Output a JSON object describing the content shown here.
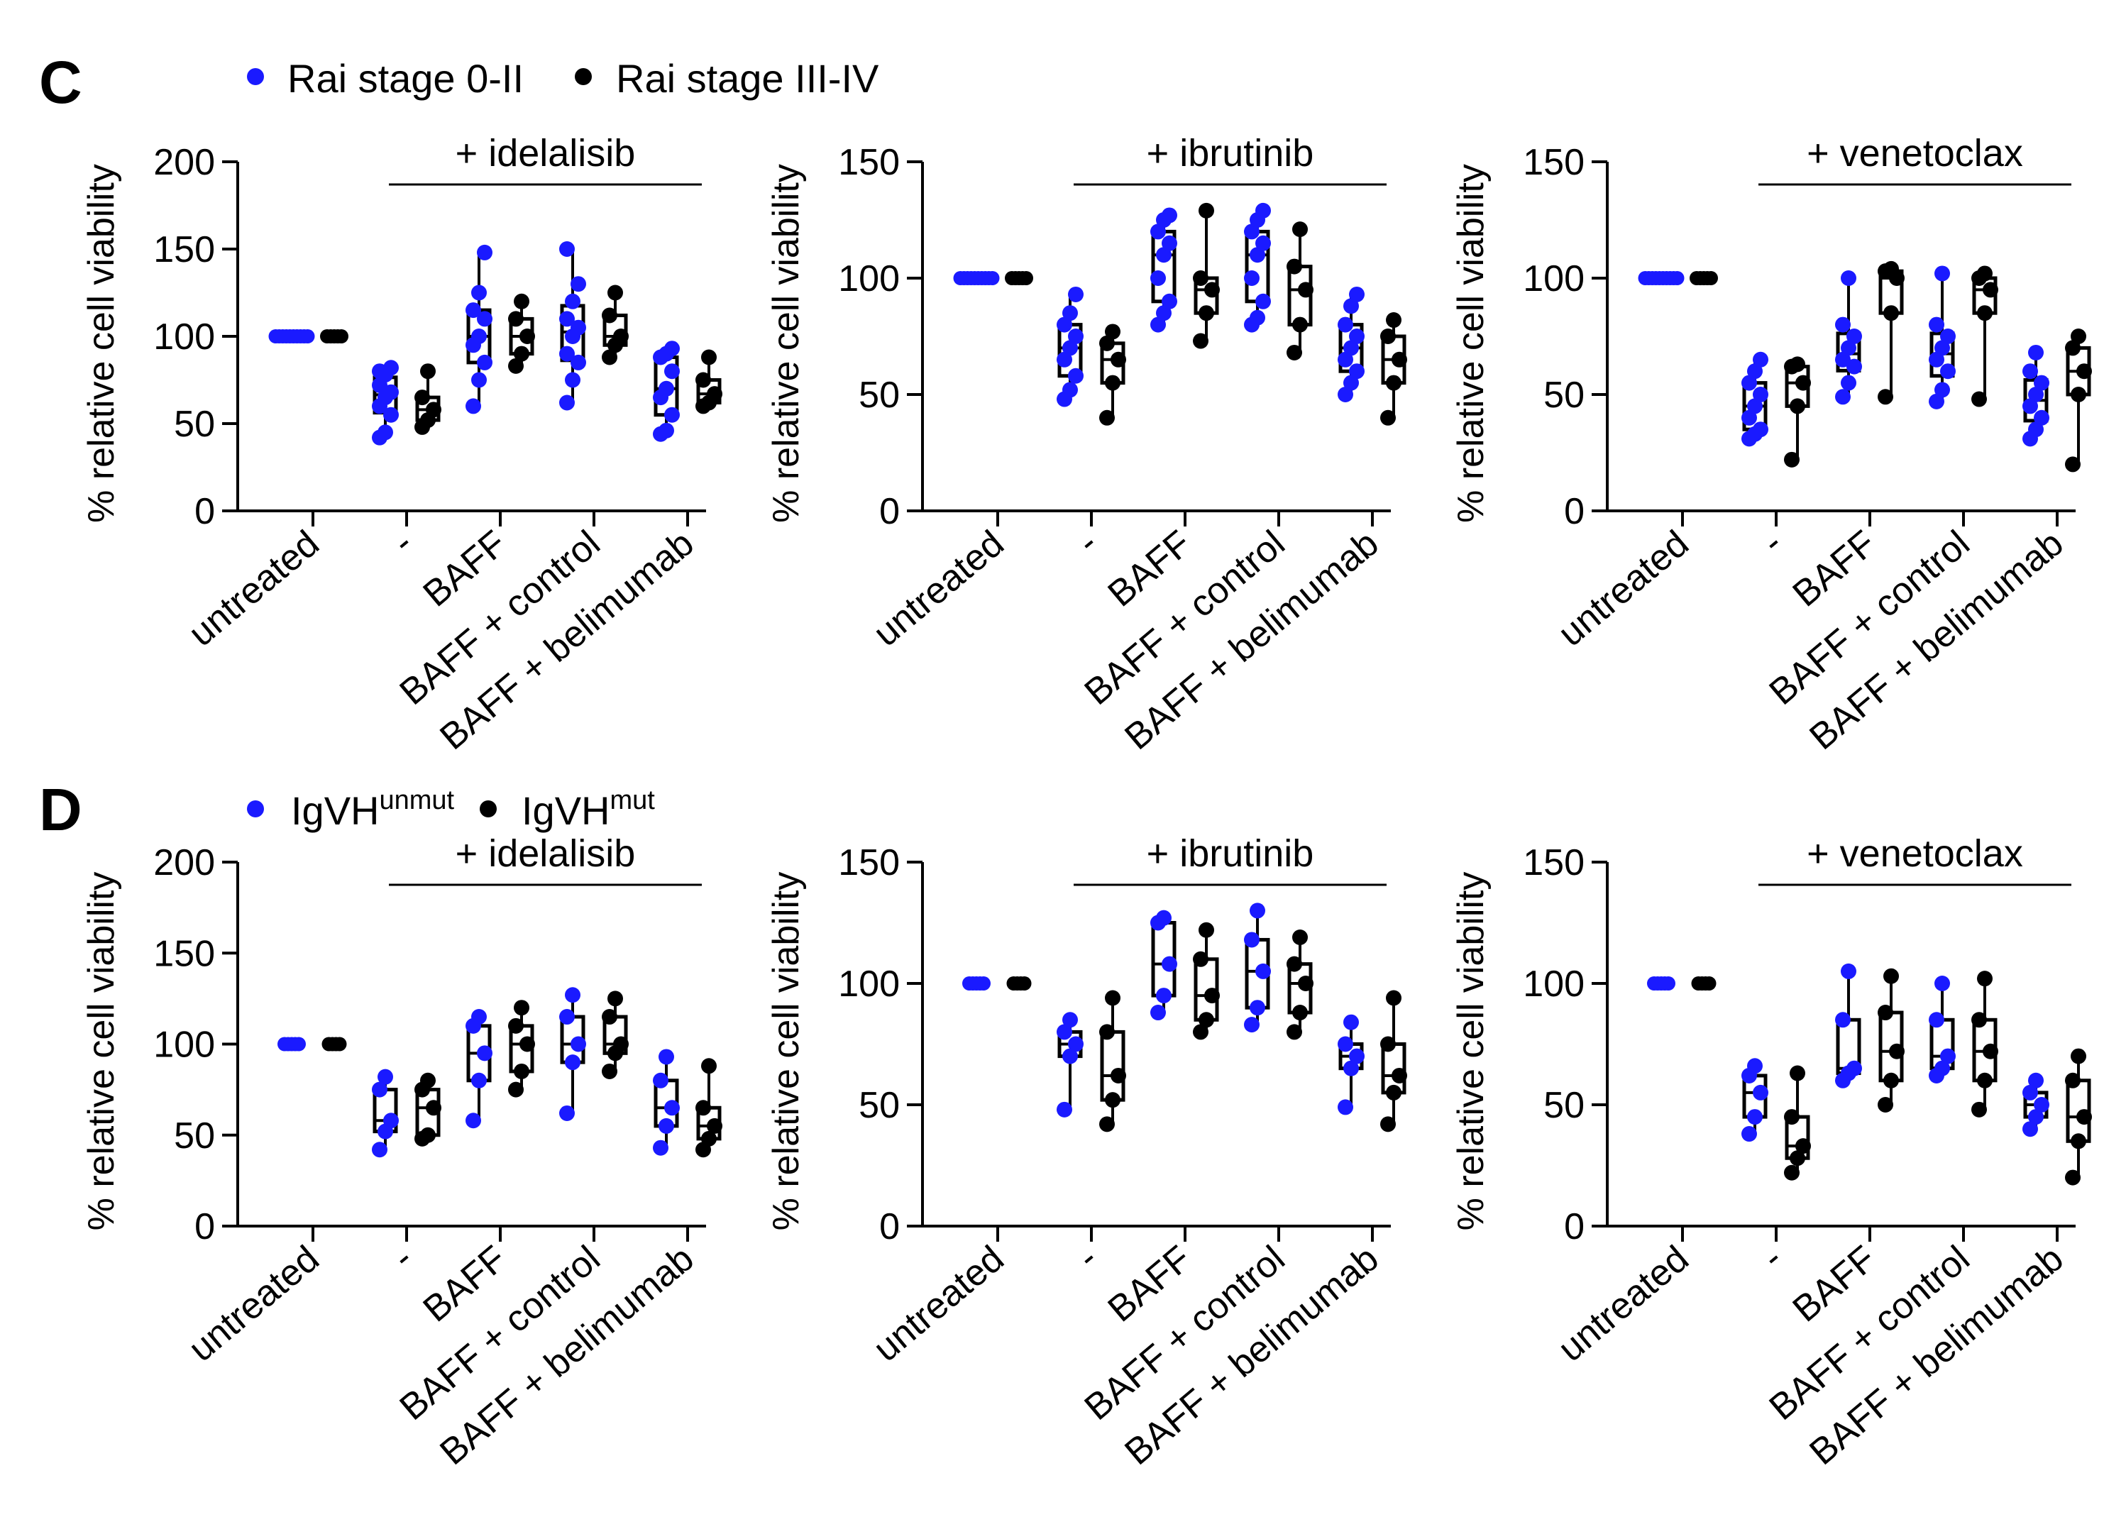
{
  "panels": [
    {
      "label": "C",
      "legend": [
        {
          "text": "Rai stage 0-II",
          "sup": "",
          "color": "#1a1aff"
        },
        {
          "text": "Rai stage III-IV",
          "sup": "",
          "color": "#000000"
        }
      ]
    },
    {
      "label": "D",
      "legend": [
        {
          "text": "IgVH",
          "sup": "unmut",
          "color": "#1a1aff"
        },
        {
          "text": "IgVH",
          "sup": "mut",
          "color": "#000000"
        }
      ]
    }
  ],
  "colors": {
    "group1": "#1a1aff",
    "group2": "#000000",
    "axis": "#000000"
  },
  "chart_data": [
    {
      "panel": "C",
      "type": "box-dot",
      "title": "+ idelalisib",
      "ylabel": "% relative cell viability",
      "ylim": [
        0,
        200
      ],
      "yticks": [
        0,
        50,
        100,
        150,
        200
      ],
      "categories": [
        "untreated",
        "-",
        "BAFF",
        "BAFF + control",
        "BAFF + belimumab"
      ],
      "series": [
        {
          "name": "Rai stage 0-II",
          "color": "#1a1aff",
          "points": [
            [
              100,
              100,
              100,
              100,
              100,
              100,
              100,
              100,
              100,
              100
            ],
            [
              42,
              45,
              55,
              60,
              65,
              68,
              72,
              78,
              82,
              80
            ],
            [
              60,
              75,
              85,
              95,
              100,
              110,
              115,
              125,
              148
            ],
            [
              62,
              75,
              85,
              90,
              100,
              105,
              110,
              120,
              130,
              150
            ],
            [
              44,
              46,
              55,
              65,
              70,
              80,
              88,
              90,
              93
            ]
          ]
        },
        {
          "name": "Rai stage III-IV",
          "color": "#000000",
          "points": [
            [
              100,
              100,
              100,
              100,
              100
            ],
            [
              48,
              52,
              58,
              65,
              80
            ],
            [
              83,
              90,
              100,
              110,
              120
            ],
            [
              88,
              95,
              100,
              112,
              125
            ],
            [
              60,
              62,
              67,
              75,
              88
            ]
          ]
        }
      ]
    },
    {
      "panel": "C",
      "type": "box-dot",
      "title": "+ ibrutinib",
      "ylabel": "% relative cell viability",
      "ylim": [
        0,
        150
      ],
      "yticks": [
        0,
        50,
        100,
        150
      ],
      "categories": [
        "untreated",
        "-",
        "BAFF",
        "BAFF + control",
        "BAFF + belimumab"
      ],
      "series": [
        {
          "name": "Rai stage 0-II",
          "color": "#1a1aff",
          "points": [
            [
              100,
              100,
              100,
              100,
              100,
              100,
              100,
              100,
              100,
              100
            ],
            [
              48,
              52,
              58,
              65,
              70,
              75,
              80,
              85,
              93
            ],
            [
              80,
              85,
              90,
              100,
              110,
              115,
              120,
              125,
              127
            ],
            [
              80,
              83,
              90,
              100,
              110,
              115,
              120,
              125,
              129
            ],
            [
              50,
              55,
              60,
              65,
              70,
              75,
              80,
              88,
              93
            ]
          ]
        },
        {
          "name": "Rai stage III-IV",
          "color": "#000000",
          "points": [
            [
              100,
              100,
              100,
              100,
              100
            ],
            [
              40,
              55,
              65,
              72,
              77
            ],
            [
              73,
              85,
              95,
              100,
              129
            ],
            [
              68,
              80,
              95,
              105,
              121
            ],
            [
              40,
              55,
              65,
              75,
              82
            ]
          ]
        }
      ]
    },
    {
      "panel": "C",
      "type": "box-dot",
      "title": "+ venetoclax",
      "ylabel": "% relative cell viability",
      "ylim": [
        0,
        150
      ],
      "yticks": [
        0,
        50,
        100,
        150
      ],
      "categories": [
        "untreated",
        "-",
        "BAFF",
        "BAFF + control",
        "BAFF + belimumab"
      ],
      "series": [
        {
          "name": "Rai stage 0-II",
          "color": "#1a1aff",
          "points": [
            [
              100,
              100,
              100,
              100,
              100,
              100,
              100,
              100,
              100,
              100
            ],
            [
              31,
              33,
              35,
              40,
              45,
              50,
              55,
              60,
              65
            ],
            [
              49,
              55,
              62,
              65,
              70,
              75,
              80,
              100
            ],
            [
              47,
              52,
              60,
              65,
              70,
              75,
              80,
              102
            ],
            [
              31,
              35,
              40,
              45,
              50,
              55,
              60,
              68
            ]
          ]
        },
        {
          "name": "Rai stage III-IV",
          "color": "#000000",
          "points": [
            [
              100,
              100,
              100,
              100,
              100
            ],
            [
              22,
              45,
              55,
              62,
              63
            ],
            [
              49,
              85,
              100,
              103,
              104
            ],
            [
              48,
              85,
              95,
              100,
              102
            ],
            [
              20,
              50,
              60,
              70,
              75
            ]
          ]
        }
      ]
    },
    {
      "panel": "D",
      "type": "box-dot",
      "title": "+ idelalisib",
      "ylabel": "% relative cell viability",
      "ylim": [
        0,
        200
      ],
      "yticks": [
        0,
        50,
        100,
        150,
        200
      ],
      "categories": [
        "untreated",
        "-",
        "BAFF",
        "BAFF + control",
        "BAFF + belimumab"
      ],
      "series": [
        {
          "name": "IgVH unmut",
          "color": "#1a1aff",
          "points": [
            [
              100,
              100,
              100,
              100,
              100
            ],
            [
              42,
              52,
              58,
              75,
              82
            ],
            [
              58,
              80,
              95,
              110,
              115
            ],
            [
              62,
              90,
              100,
              115,
              127
            ],
            [
              43,
              55,
              65,
              80,
              93
            ]
          ]
        },
        {
          "name": "IgVH mut",
          "color": "#000000",
          "points": [
            [
              100,
              100,
              100,
              100
            ],
            [
              48,
              50,
              65,
              75,
              80
            ],
            [
              75,
              85,
              100,
              110,
              120
            ],
            [
              85,
              95,
              100,
              115,
              125
            ],
            [
              42,
              48,
              55,
              65,
              88
            ]
          ]
        }
      ]
    },
    {
      "panel": "D",
      "type": "box-dot",
      "title": "+ ibrutinib",
      "ylabel": "% relative cell viability",
      "ylim": [
        0,
        150
      ],
      "yticks": [
        0,
        50,
        100,
        150
      ],
      "categories": [
        "untreated",
        "-",
        "BAFF",
        "BAFF + control",
        "BAFF + belimumab"
      ],
      "series": [
        {
          "name": "IgVH unmut",
          "color": "#1a1aff",
          "points": [
            [
              100,
              100,
              100,
              100,
              100
            ],
            [
              48,
              70,
              75,
              80,
              85
            ],
            [
              88,
              95,
              108,
              125,
              127
            ],
            [
              83,
              90,
              105,
              118,
              130
            ],
            [
              49,
              65,
              70,
              75,
              84
            ]
          ]
        },
        {
          "name": "IgVH mut",
          "color": "#000000",
          "points": [
            [
              100,
              100,
              100,
              100
            ],
            [
              42,
              52,
              62,
              80,
              94
            ],
            [
              80,
              85,
              95,
              110,
              122
            ],
            [
              80,
              88,
              100,
              108,
              119
            ],
            [
              42,
              55,
              62,
              75,
              94
            ]
          ]
        }
      ]
    },
    {
      "panel": "D",
      "type": "box-dot",
      "title": "+ venetoclax",
      "ylabel": "% relative cell viability",
      "ylim": [
        0,
        150
      ],
      "yticks": [
        0,
        50,
        100,
        150
      ],
      "categories": [
        "untreated",
        "-",
        "BAFF",
        "BAFF + control",
        "BAFF + belimumab"
      ],
      "series": [
        {
          "name": "IgVH unmut",
          "color": "#1a1aff",
          "points": [
            [
              100,
              100,
              100,
              100,
              100
            ],
            [
              38,
              45,
              55,
              62,
              66
            ],
            [
              60,
              63,
              65,
              85,
              105
            ],
            [
              62,
              65,
              70,
              85,
              100
            ],
            [
              40,
              45,
              50,
              55,
              60
            ]
          ]
        },
        {
          "name": "IgVH mut",
          "color": "#000000",
          "points": [
            [
              100,
              100,
              100,
              100
            ],
            [
              22,
              28,
              33,
              45,
              63
            ],
            [
              50,
              60,
              72,
              88,
              103
            ],
            [
              48,
              60,
              72,
              85,
              102
            ],
            [
              20,
              35,
              45,
              60,
              70
            ]
          ]
        }
      ]
    }
  ]
}
